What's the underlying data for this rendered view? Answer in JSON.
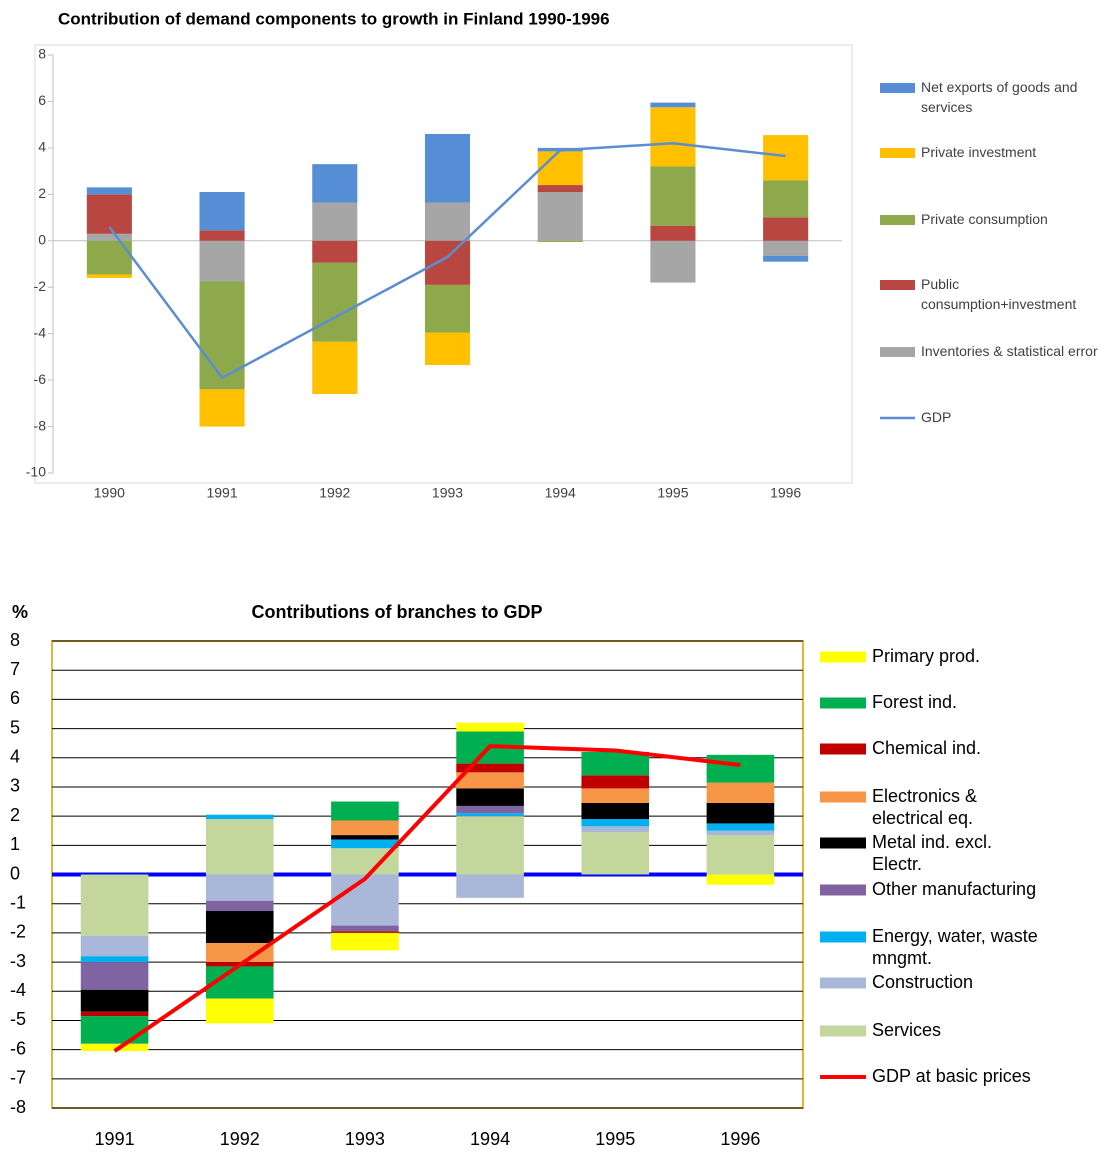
{
  "chart_data": [
    {
      "type": "bar",
      "stacked": true,
      "title": "Contribution of demand components to growth in Finland  1990-1996",
      "categories": [
        "1990",
        "1991",
        "1992",
        "1993",
        "1994",
        "1995",
        "1996"
      ],
      "ylim": [
        -10,
        8
      ],
      "yticks": [
        -10,
        -8,
        -6,
        -4,
        -2,
        0,
        2,
        4,
        6,
        8
      ],
      "grid": false,
      "legend": "right",
      "zero_line_color": "#bfbfbf",
      "series": [
        {
          "name": "Net exports of goods and services",
          "color": "#558ed5",
          "values": [
            0.3,
            1.65,
            1.65,
            2.95,
            0.15,
            0.2,
            -0.25
          ]
        },
        {
          "name": "Private investment",
          "color": "#ffc000",
          "values": [
            -0.15,
            -1.6,
            -2.25,
            -1.4,
            1.45,
            2.55,
            1.95
          ]
        },
        {
          "name": "Private consumption",
          "color": "#8ea84c",
          "values": [
            -1.45,
            -4.65,
            -3.4,
            -2.05,
            -0.05,
            2.55,
            1.6
          ]
        },
        {
          "name": "Public consumption+investment",
          "color": "#b84742",
          "values": [
            1.7,
            0.45,
            -0.95,
            -1.9,
            0.3,
            0.65,
            1.0
          ]
        },
        {
          "name": "Inventories & statistical error",
          "color": "#a6a6a6",
          "values": [
            0.3,
            -1.75,
            1.65,
            1.65,
            2.1,
            -1.8,
            -0.65
          ]
        },
        {
          "name": "GDP",
          "type": "line",
          "color": "#5b8ed0",
          "values": [
            0.6,
            -5.9,
            -3.3,
            -0.7,
            3.9,
            4.2,
            3.65
          ]
        }
      ]
    },
    {
      "type": "bar",
      "stacked": true,
      "title": "Contributions of branches to GDP",
      "ylabel": "%",
      "categories": [
        "1991",
        "1992",
        "1993",
        "1994",
        "1995",
        "1996"
      ],
      "ylim": [
        -8,
        8
      ],
      "yticks": [
        -8,
        -7,
        -6,
        -5,
        -4,
        -3,
        -2,
        -1,
        0,
        1,
        2,
        3,
        4,
        5,
        6,
        7,
        8
      ],
      "grid": true,
      "legend": "right",
      "zero_line_color": "#0000ff",
      "series": [
        {
          "name": "Primary prod.",
          "color": "#ffff00",
          "values": [
            -0.25,
            -0.85,
            -0.6,
            0.3,
            0,
            -0.35
          ]
        },
        {
          "name": "Forest ind.",
          "color": "#00b050",
          "values": [
            -0.95,
            -1.1,
            0.65,
            1.1,
            0.8,
            0.95
          ]
        },
        {
          "name": "Chemical ind.",
          "color": "#c00000",
          "values": [
            -0.15,
            -0.15,
            -0.05,
            0.3,
            0.45,
            0
          ]
        },
        {
          "name": "Electronics & electrical eq.",
          "color": "#f79646",
          "values": [
            0,
            -0.65,
            0.5,
            0.55,
            0.5,
            0.7
          ]
        },
        {
          "name": "Metal ind. excl. Electr.",
          "color": "#000000",
          "values": [
            -0.75,
            -1.1,
            0.15,
            0.6,
            0.55,
            0.7
          ]
        },
        {
          "name": "Other manufacturing",
          "color": "#8064a2",
          "values": [
            -0.95,
            -0.35,
            -0.2,
            0.25,
            0,
            0
          ]
        },
        {
          "name": "Energy, water, waste mngmt.",
          "color": "#00b0f0",
          "values": [
            -0.2,
            0.15,
            0.3,
            0.1,
            0.25,
            0.25
          ]
        },
        {
          "name": "Construction",
          "color": "#a9b8d8",
          "values": [
            -0.7,
            -0.9,
            -1.75,
            -0.8,
            0.2,
            0.15
          ]
        },
        {
          "name": "Services",
          "color": "#c3d69b",
          "values": [
            -2.1,
            1.9,
            0.9,
            2.0,
            1.45,
            1.35
          ]
        },
        {
          "name": "GDP at basic prices",
          "type": "line",
          "color": "#ff0000",
          "values": [
            -6.05,
            -3.1,
            -0.15,
            4.4,
            4.25,
            3.75
          ]
        }
      ]
    }
  ]
}
